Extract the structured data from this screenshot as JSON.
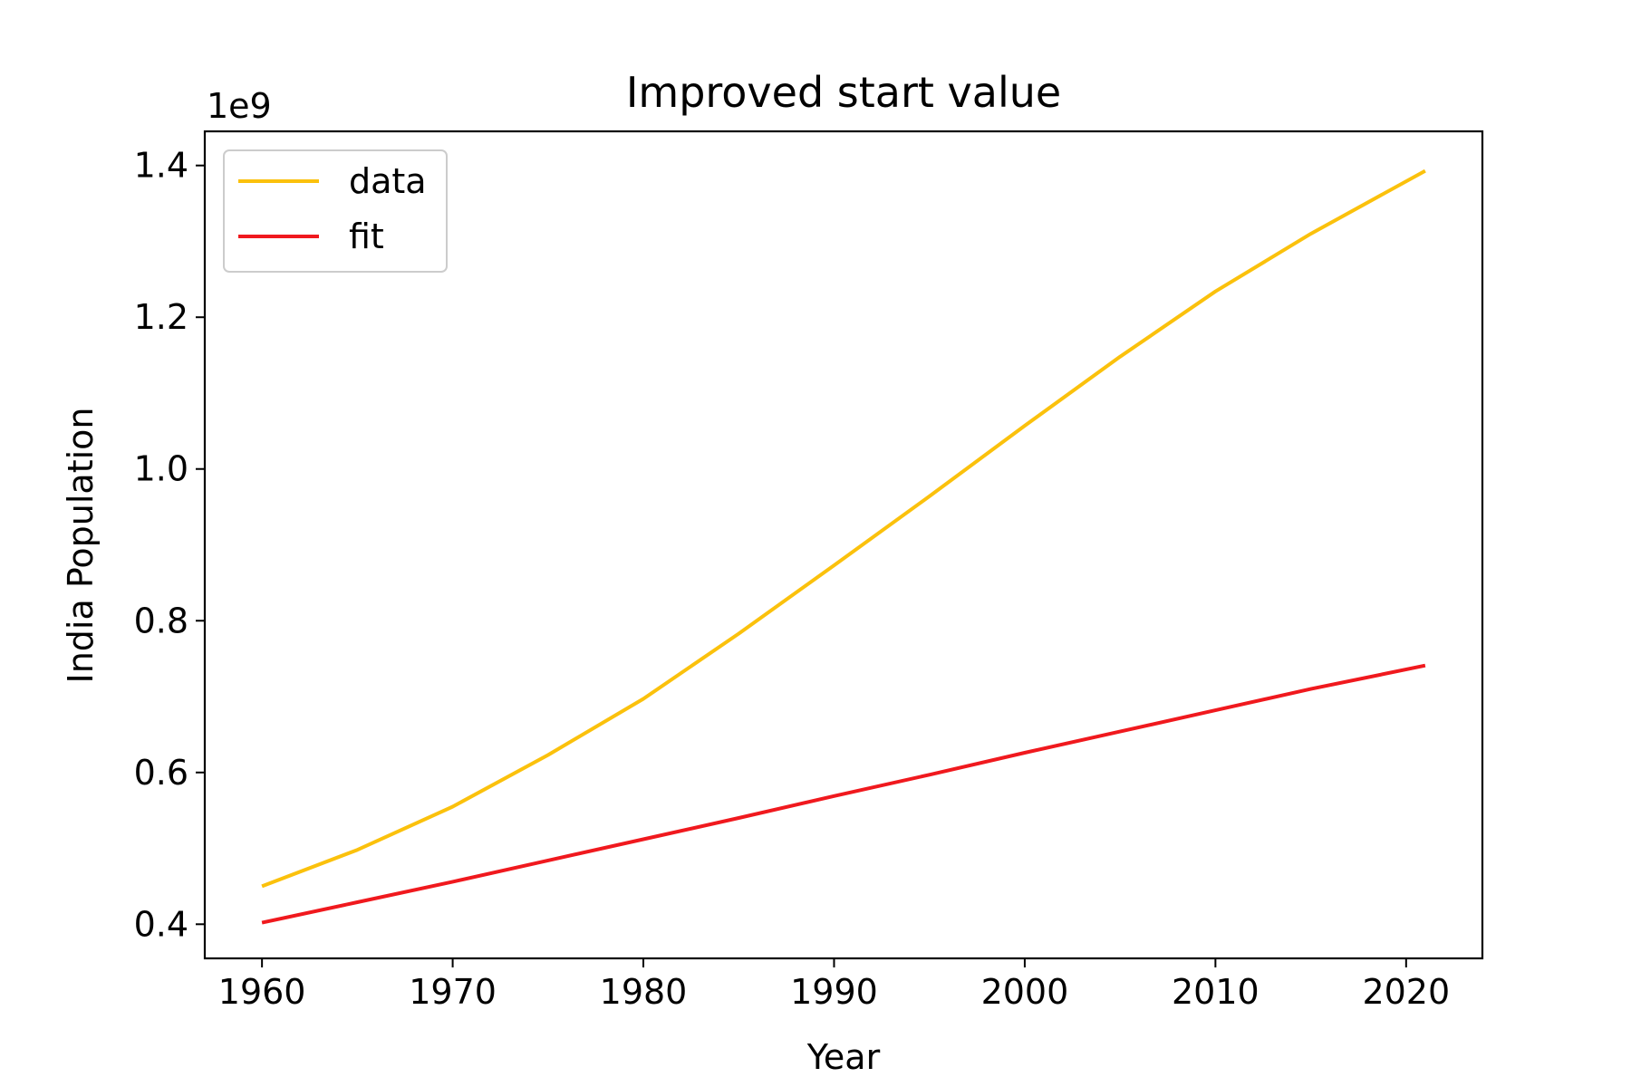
{
  "chart_data": {
    "type": "line",
    "title": "Improved start value",
    "xlabel": "Year",
    "ylabel": "India Population",
    "offset_text": "1e9",
    "xlim": [
      1957,
      2024
    ],
    "ylim": [
      0.355,
      1.445
    ],
    "xticks": [
      1960,
      1970,
      1980,
      1990,
      2000,
      2010,
      2020
    ],
    "yticks": [
      0.4,
      0.6,
      0.8,
      1.0,
      1.2,
      1.4
    ],
    "ytick_labels": [
      "0.4",
      "0.6",
      "0.8",
      "1.0",
      "1.2",
      "1.4"
    ],
    "grid": false,
    "legend_position": "upper-left",
    "series": [
      {
        "name": "data",
        "color": "#FBC10C",
        "x": [
          1960,
          1965,
          1970,
          1975,
          1980,
          1985,
          1990,
          1995,
          2000,
          2005,
          2010,
          2015,
          2021
        ],
        "y": [
          0.45,
          0.498,
          0.555,
          0.623,
          0.697,
          0.783,
          0.873,
          0.964,
          1.057,
          1.148,
          1.234,
          1.31,
          1.393
        ]
      },
      {
        "name": "fit",
        "color": "#F0191E",
        "x": [
          1960,
          1965,
          1970,
          1975,
          1980,
          1985,
          1990,
          1995,
          2000,
          2005,
          2010,
          2015,
          2021
        ],
        "y": [
          0.402,
          0.429,
          0.456,
          0.484,
          0.512,
          0.54,
          0.569,
          0.597,
          0.626,
          0.654,
          0.682,
          0.71,
          0.741
        ]
      }
    ]
  }
}
